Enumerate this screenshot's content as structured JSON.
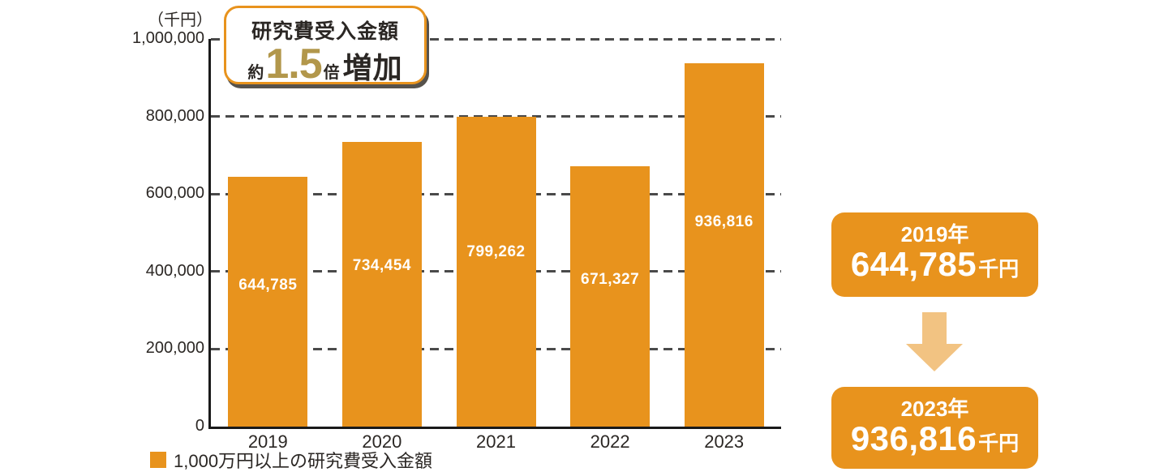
{
  "colors": {
    "accent": "#E8931D",
    "arrow": "#F2C382",
    "gold": "#B2974B",
    "text_dark": "#2B2724",
    "grid": "#4A4A4A",
    "bar_label": "#FFFFFF"
  },
  "badge": {
    "line1": "研究費受入金額",
    "prefix": "約",
    "multiplier": "1.5",
    "suffix": "倍",
    "word": "増加"
  },
  "summary": {
    "from": {
      "year_label": "2019年",
      "value": "644,785",
      "unit": "千円"
    },
    "to": {
      "year_label": "2023年",
      "value": "936,816",
      "unit": "千円"
    }
  },
  "chart_data": {
    "type": "bar",
    "unit_label": "（千円）",
    "categories": [
      "2019",
      "2020",
      "2021",
      "2022",
      "2023"
    ],
    "values": [
      644785,
      734454,
      799262,
      671327,
      936816
    ],
    "value_labels": [
      "644,785",
      "734,454",
      "799,262",
      "671,327",
      "936,816"
    ],
    "ylim": [
      0,
      1000000
    ],
    "y_ticks": [
      {
        "label": "1,000,000",
        "value": 1000000
      },
      {
        "label": "800,000",
        "value": 800000
      },
      {
        "label": "600,000",
        "value": 600000
      },
      {
        "label": "400,000",
        "value": 400000
      },
      {
        "label": "200,000",
        "value": 200000
      },
      {
        "label": "0",
        "value": 0
      }
    ],
    "grid": "dashed-horizontal",
    "legend": "1,000万円以上の研究費受入金額",
    "legend_position": "bottom-left",
    "bar_color": "#E8931D"
  }
}
